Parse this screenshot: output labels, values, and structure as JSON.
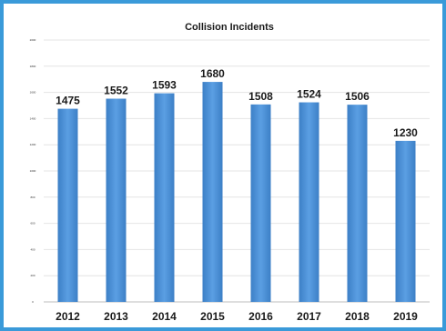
{
  "chart_data": {
    "type": "bar",
    "title": "Collision Incidents",
    "categories": [
      "2012",
      "2013",
      "2014",
      "2015",
      "2016",
      "2017",
      "2018",
      "2019"
    ],
    "values": [
      1475,
      1552,
      1593,
      1680,
      1508,
      1524,
      1506,
      1230
    ],
    "y_ticks": [
      "0",
      "200",
      "400",
      "600",
      "800",
      "1000",
      "1200",
      "1400",
      "1600",
      "1800",
      "2000"
    ],
    "ylim": [
      0,
      2000
    ],
    "grid": true,
    "legend": "none",
    "bar_color": "#4a8fd6",
    "frame_color": "#3a9ad9"
  }
}
